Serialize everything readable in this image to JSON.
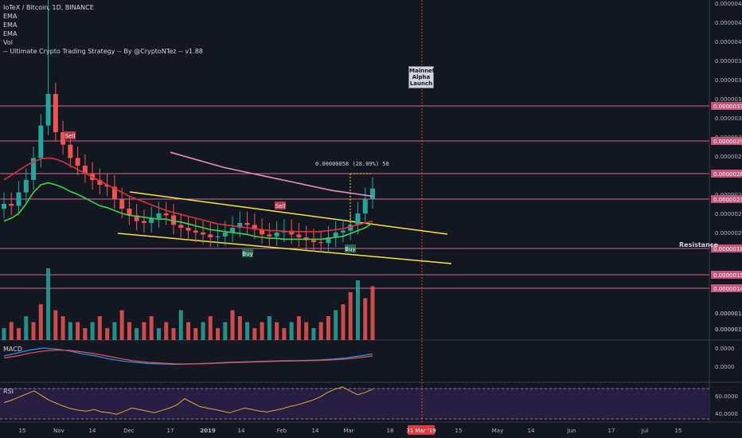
{
  "legend": {
    "title": "IoTeX / Bitcoin, 1D, BINANCE",
    "items": [
      "EMA",
      "EMA",
      "EMA",
      "Vol",
      "-- Ultimate Crypto Trading Strategy -- By @CryptoNTez -- v1.88"
    ]
  },
  "annotations": {
    "mainnet": [
      "Mainnet",
      "Alpha",
      "Launch"
    ],
    "resistance": "Resistance",
    "measure": "0.00000058 (28.09%) 58",
    "signals": [
      {
        "label": "Sell",
        "x": "2018-11-08",
        "y": 2.62e-07
      },
      {
        "label": "Sell",
        "x": "2019-02-01",
        "y": 2.33e-07
      },
      {
        "label": "Buy",
        "x": "2019-01-11",
        "y": 1.79e-07
      },
      {
        "label": "Buy",
        "x": "2019-02-27",
        "y": 1.8e-07
      }
    ]
  },
  "chart_data": [
    {
      "type": "line",
      "title": "IoTeX / Bitcoin, 1D, BINANCE",
      "ylim": [
        9e-08,
        4.4e-07
      ],
      "x_ticks": [
        "15",
        "Nov",
        "14",
        "Dec",
        "17",
        "2019",
        "14",
        "Feb",
        "14",
        "Mar",
        "18",
        "31 Mar '19",
        "15",
        "May",
        "14",
        "Jun",
        "17",
        "Jul",
        "15"
      ],
      "y_ticks": [
        "0.00000100",
        "0.00000120",
        "0.00000200",
        "0.00000220",
        "0.00000240",
        "0.00000260",
        "0.00000280",
        "0.00000300",
        "0.00000320",
        "0.00000340",
        "0.00000360",
        "0.00000380",
        "0.00000400",
        "0.00000420",
        "0.00000440"
      ],
      "horizontal_levels": [
        {
          "label": "0.00000331",
          "value": 3.31e-07
        },
        {
          "label": "0.00000296",
          "value": 2.96e-07
        },
        {
          "label": "0.00000262",
          "value": 2.62e-07
        },
        {
          "label": "0.00000235",
          "value": 2.35e-07
        },
        {
          "label": "0.00000184",
          "value": 1.84e-07
        },
        {
          "label": "0.00000157",
          "value": 1.57e-07
        },
        {
          "label": "0.00000142",
          "value": 1.42e-07
        }
      ],
      "price_close": [
        2.3,
        2.28,
        2.42,
        2.55,
        2.78,
        3.12,
        3.45,
        3.05,
        2.92,
        2.78,
        2.7,
        2.62,
        2.55,
        2.5,
        2.48,
        2.35,
        2.25,
        2.18,
        2.12,
        2.1,
        2.15,
        2.2,
        2.18,
        2.08,
        2.05,
        2.02,
        2.0,
        1.98,
        1.95,
        1.96,
        2.0,
        2.05,
        2.1,
        2.08,
        2.03,
        1.98,
        1.96,
        2.0,
        2.02,
        1.98,
        1.95,
        1.92,
        1.9,
        1.89,
        1.95,
        2.0,
        2.02,
        2.08,
        2.2,
        2.35,
        2.46
      ],
      "ema_green": [
        2.12,
        2.15,
        2.2,
        2.3,
        2.42,
        2.5,
        2.52,
        2.5,
        2.47,
        2.43,
        2.4,
        2.36,
        2.32,
        2.28,
        2.26,
        2.23,
        2.2,
        2.18,
        2.17,
        2.16,
        2.15,
        2.14,
        2.14,
        2.12,
        2.11,
        2.09,
        2.07,
        2.05,
        2.03,
        2.02,
        2.01,
        2.0,
        1.99,
        1.98,
        1.96,
        1.95,
        1.94,
        1.94,
        1.93,
        1.93,
        1.93,
        1.93,
        1.93,
        1.93,
        1.94,
        1.95,
        1.96,
        1.99,
        2.02,
        2.05,
        2.1
      ],
      "ema_red": [
        2.55,
        2.6,
        2.65,
        2.7,
        2.74,
        2.77,
        2.78,
        2.77,
        2.74,
        2.7,
        2.66,
        2.62,
        2.58,
        2.54,
        2.5,
        2.46,
        2.42,
        2.38,
        2.35,
        2.32,
        2.29,
        2.26,
        2.23,
        2.21,
        2.19,
        2.17,
        2.15,
        2.13,
        2.11,
        2.09,
        2.08,
        2.07,
        2.06,
        2.05,
        2.04,
        2.03,
        2.02,
        2.02,
        2.01,
        2.01,
        2.01,
        2.01,
        2.01,
        2.01,
        2.02,
        2.03,
        2.04,
        2.06,
        2.08,
        2.1,
        2.12
      ],
      "ema_pink": [
        2.84,
        2.8,
        2.76,
        2.72,
        2.68,
        2.65,
        2.62,
        2.59,
        2.56,
        2.53,
        2.5,
        2.47,
        2.44,
        2.42,
        2.4,
        2.38
      ]
    },
    {
      "type": "bar",
      "title": "Vol",
      "y_ticks": [
        "0.00000100",
        "0.00000120"
      ],
      "values": [
        2,
        3,
        2,
        4,
        3,
        6,
        12,
        5,
        4,
        3,
        3,
        2,
        3,
        4,
        2,
        3,
        5,
        3,
        2,
        3,
        4,
        2,
        3,
        2,
        5,
        3,
        2,
        3,
        4,
        2,
        3,
        5,
        4,
        3,
        2,
        3,
        4,
        3,
        2,
        3,
        4,
        3,
        2,
        3,
        4,
        5,
        6,
        8,
        10,
        7,
        9
      ]
    },
    {
      "type": "line",
      "title": "MACD",
      "y_ticks": [
        "0.0000",
        "0.0000"
      ],
      "series": [
        {
          "values": [
            0.2,
            0.35,
            0.5,
            0.6,
            0.55,
            0.45,
            0.3,
            0.2,
            0.05,
            -0.05,
            -0.12,
            -0.18,
            -0.2,
            -0.22,
            -0.2,
            -0.18,
            -0.15,
            -0.12,
            -0.1,
            -0.08,
            -0.06,
            -0.04,
            -0.03,
            -0.02,
            0.0,
            0.05,
            0.1,
            0.2,
            0.3
          ]
        },
        {
          "values": [
            0.1,
            0.2,
            0.35,
            0.45,
            0.5,
            0.48,
            0.4,
            0.3,
            0.18,
            0.05,
            -0.05,
            -0.12,
            -0.16,
            -0.19,
            -0.2,
            -0.19,
            -0.17,
            -0.14,
            -0.12,
            -0.1,
            -0.08,
            -0.06,
            -0.05,
            -0.04,
            -0.02,
            0.01,
            0.05,
            0.12,
            0.2
          ]
        }
      ]
    },
    {
      "type": "line",
      "title": "RSI",
      "y_ticks": [
        "60.0000",
        "40.0000"
      ],
      "ylim": [
        30,
        80
      ],
      "values": [
        55,
        58,
        62,
        66,
        70,
        64,
        58,
        54,
        50,
        47,
        45,
        44,
        46,
        43,
        42,
        40,
        44,
        48,
        46,
        44,
        42,
        45,
        48,
        52,
        60,
        55,
        50,
        48,
        46,
        44,
        42,
        45,
        48,
        46,
        44,
        43,
        45,
        47,
        50,
        52,
        55,
        58,
        62,
        68,
        72,
        75,
        70,
        65,
        68,
        72
      ]
    }
  ]
}
